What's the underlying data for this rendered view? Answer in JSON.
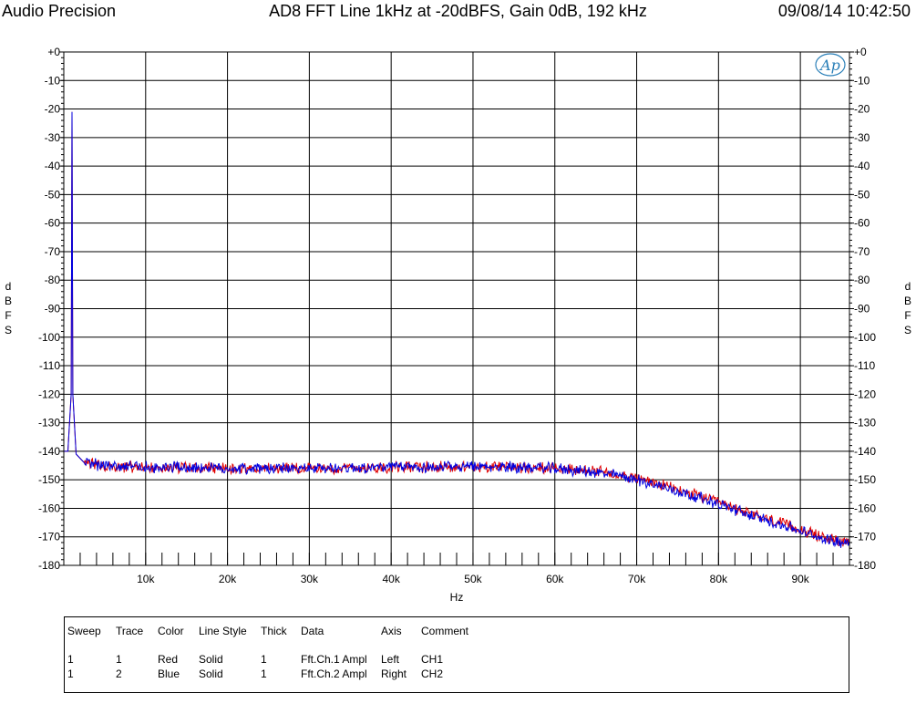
{
  "header": {
    "brand": "Audio Precision",
    "title": "AD8 FFT Line 1kHz at -20dBFS, Gain 0dB, 192 kHz",
    "timestamp": "09/08/14 10:42:50"
  },
  "logo_text": "Ap",
  "chart_data": {
    "type": "line",
    "title": "AD8 FFT Line 1kHz at -20dBFS, Gain 0dB, 192 kHz",
    "xlabel": "Hz",
    "ylabel_left": "dBFS",
    "ylabel_right": "dBFS",
    "xlim": [
      0,
      96000
    ],
    "ylim": [
      -180,
      0
    ],
    "x_tick_labels": [
      "10k",
      "20k",
      "30k",
      "40k",
      "50k",
      "60k",
      "70k",
      "80k",
      "90k"
    ],
    "x_ticks": [
      10000,
      20000,
      30000,
      40000,
      50000,
      60000,
      70000,
      80000,
      90000
    ],
    "y_tick_labels": [
      "+0",
      "-10",
      "-20",
      "-30",
      "-40",
      "-50",
      "-60",
      "-70",
      "-80",
      "-90",
      "-100",
      "-110",
      "-120",
      "-130",
      "-140",
      "-150",
      "-160",
      "-170",
      "-180"
    ],
    "y_ticks": [
      0,
      -10,
      -20,
      -30,
      -40,
      -50,
      -60,
      -70,
      -80,
      -90,
      -100,
      -110,
      -120,
      -130,
      -140,
      -150,
      -160,
      -170,
      -180
    ],
    "grid": true,
    "series": [
      {
        "name": "Fft.Ch.1 Ampl",
        "color": "#e00000",
        "x": [
          0,
          500,
          900,
          1000,
          1100,
          1500,
          2500,
          5000,
          10000,
          20000,
          30000,
          40000,
          50000,
          55000,
          60000,
          65000,
          68000,
          70000,
          72000,
          75000,
          78000,
          80000,
          82000,
          85000,
          88000,
          90000,
          92000,
          94000,
          96000
        ],
        "values": [
          -140,
          -140,
          -120,
          -21,
          -120,
          -141,
          -144,
          -145,
          -145.5,
          -146,
          -146,
          -145.5,
          -145.5,
          -145.5,
          -146,
          -147,
          -148,
          -149.5,
          -151,
          -153.5,
          -156,
          -158,
          -160,
          -163,
          -165.5,
          -167.5,
          -169.5,
          -171,
          -171.5
        ]
      },
      {
        "name": "Fft.Ch.2 Ampl",
        "color": "#0000e0",
        "x": [
          0,
          500,
          900,
          1000,
          1100,
          1500,
          2500,
          5000,
          10000,
          20000,
          30000,
          40000,
          50000,
          55000,
          60000,
          65000,
          68000,
          70000,
          72000,
          75000,
          78000,
          80000,
          82000,
          85000,
          88000,
          90000,
          92000,
          94000,
          96000
        ],
        "values": [
          -140,
          -140,
          -120,
          -21,
          -120,
          -141,
          -144,
          -145,
          -145.5,
          -146,
          -146,
          -145.5,
          -145.5,
          -145.5,
          -146,
          -147.5,
          -148.5,
          -150,
          -151.5,
          -154,
          -156.5,
          -158.5,
          -160.5,
          -163.5,
          -166,
          -168,
          -170,
          -171.5,
          -172
        ]
      }
    ]
  },
  "legend": {
    "headers": [
      "Sweep",
      "Trace",
      "Color",
      "Line Style",
      "Thick",
      "Data",
      "Axis",
      "Comment"
    ],
    "rows": [
      [
        "1",
        "1",
        "Red",
        "Solid",
        "1",
        "Fft.Ch.1 Ampl",
        "Left",
        "CH1"
      ],
      [
        "1",
        "2",
        "Blue",
        "Solid",
        "1",
        "Fft.Ch.2 Ampl",
        "Right",
        "CH2"
      ]
    ]
  }
}
